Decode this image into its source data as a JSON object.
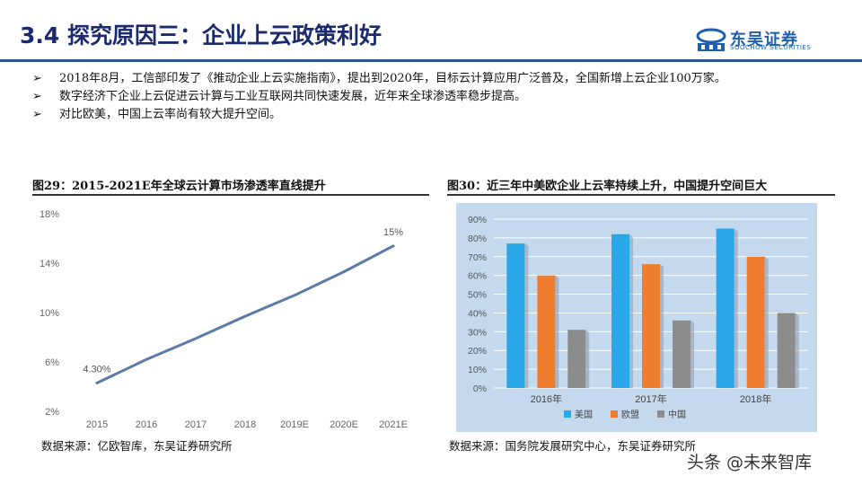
{
  "header": {
    "title": "3.4 探究原因三：企业上云政策利好",
    "logo_text": "东吴证券",
    "logo_sub": "SOOCHOW SECURITIES",
    "bar_color": "#2f5597"
  },
  "bullets": [
    {
      "mark": "➢",
      "text": "2018年8月，工信部印发了《推动企业上云实施指南》，提出到2020年，目标云计算应用广泛普及，全国新增上云企业100万家。"
    },
    {
      "mark": "➢",
      "text": "数字经济下企业上云促进云计算与工业互联网共同快速发展，近年来全球渗透率稳步提高。"
    },
    {
      "mark": "➢",
      "text": "对比欧美，中国上云率尚有较大提升空间。"
    }
  ],
  "figure29": {
    "title": "图29：2015-2021E年全球云计算市场渗透率直线提升",
    "source": "数据来源：亿欧智库，东吴证券研究所"
  },
  "figure30": {
    "title": "图30：近三年中美欧企业上云率持续上升，中国提升空间巨大",
    "source": "数据来源：国务院发展研究中心，东吴证券研究所"
  },
  "watermark": "头条 @未来智库",
  "chart_data": [
    {
      "type": "line",
      "title": "",
      "x": [
        "2015",
        "2016",
        "2017",
        "2018",
        "2019E",
        "2020E",
        "2021E"
      ],
      "yticks": [
        "2%",
        "6%",
        "10%",
        "14%",
        "18%"
      ],
      "ylim": [
        2,
        18
      ],
      "series": [
        {
          "values": [
            4.3,
            6.2,
            7.9,
            9.7,
            11.4,
            13.3,
            15.4
          ]
        }
      ],
      "annotations": [
        {
          "index": 0,
          "text": "4.30%"
        },
        {
          "index": 6,
          "text": "15%"
        }
      ],
      "line_color": "#5b7ba6",
      "grid": false
    },
    {
      "type": "bar",
      "title": "",
      "categories": [
        "2016年",
        "2017年",
        "2018年"
      ],
      "yticks": [
        "0%",
        "10%",
        "20%",
        "30%",
        "40%",
        "50%",
        "60%",
        "70%",
        "80%",
        "90%"
      ],
      "ylim": [
        0,
        90
      ],
      "series": [
        {
          "name": "美国",
          "values": [
            77,
            82,
            85
          ],
          "color": "#2aa7e8"
        },
        {
          "name": "欧盟",
          "values": [
            60,
            66,
            70
          ],
          "color": "#ee7d2f"
        },
        {
          "name": "中国",
          "values": [
            31,
            36,
            40
          ],
          "color": "#8c8c8c"
        }
      ],
      "background": "#c5d9ee",
      "legend": "bottom",
      "grid": true
    }
  ]
}
